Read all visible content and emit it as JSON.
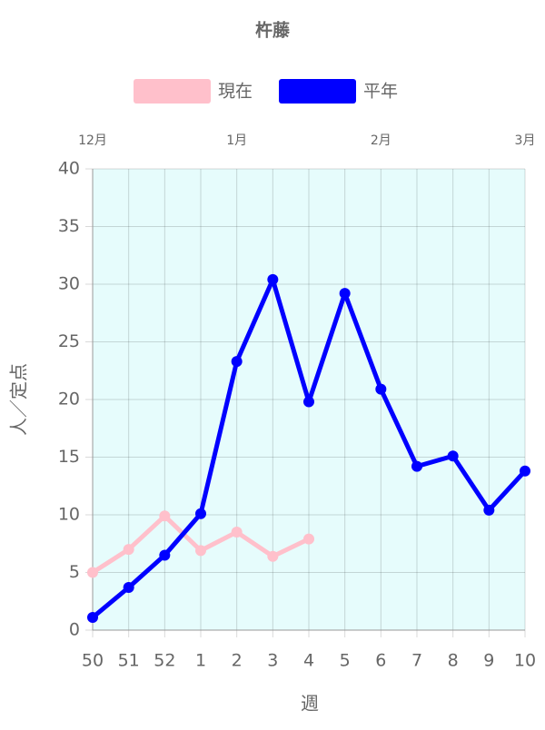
{
  "chart_data": {
    "type": "line",
    "title": "杵藤",
    "x_label": "週",
    "y_label": "人／定点",
    "categories": [
      "50",
      "51",
      "52",
      "1",
      "2",
      "3",
      "4",
      "5",
      "6",
      "7",
      "8",
      "9",
      "10"
    ],
    "series": [
      {
        "name": "現在",
        "color": "#ffc0cb",
        "values": [
          5.0,
          7.0,
          9.9,
          6.9,
          8.5,
          6.4,
          7.9,
          null,
          null,
          null,
          null,
          null,
          null
        ]
      },
      {
        "name": "平年",
        "color": "#0000ff",
        "values": [
          1.1,
          3.7,
          6.5,
          10.1,
          23.3,
          30.4,
          19.8,
          29.2,
          20.9,
          14.2,
          15.1,
          10.4,
          13.8
        ]
      }
    ],
    "x2_labels": [
      {
        "label": "12月",
        "category": "50"
      },
      {
        "label": "1月",
        "category": "2"
      },
      {
        "label": "2月",
        "category": "6"
      },
      {
        "label": "3月",
        "category": "10"
      }
    ],
    "ylim": [
      0,
      40
    ],
    "yticks": [
      0,
      5,
      10,
      15,
      20,
      25,
      30,
      35,
      40
    ],
    "grid": true,
    "background": "#e6fcfc",
    "legend": "top"
  }
}
